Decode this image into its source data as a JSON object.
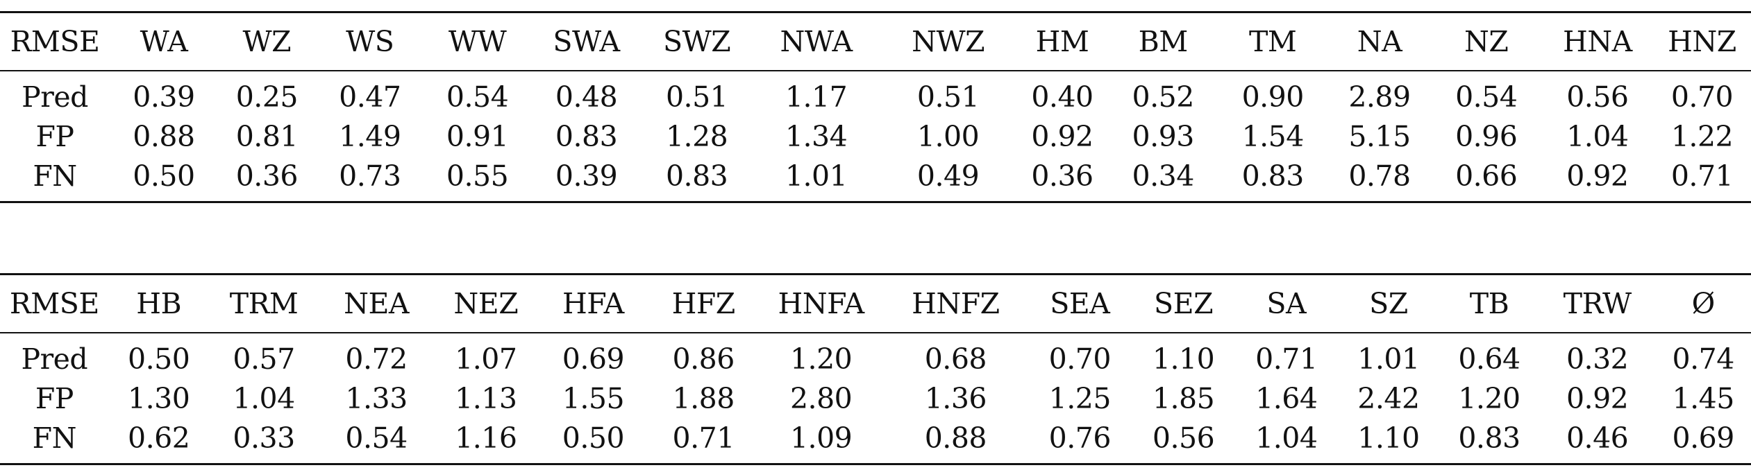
{
  "tables": [
    {
      "headers": [
        "RMSE",
        "WA",
        "WZ",
        "WS",
        "WW",
        "SWA",
        "SWZ",
        "NWA",
        "NWZ",
        "HM",
        "BM",
        "TM",
        "NA",
        "NZ",
        "HNA",
        "HNZ"
      ],
      "rows": [
        [
          "Pred",
          "0.39",
          "0.25",
          "0.47",
          "0.54",
          "0.48",
          "0.51",
          "1.17",
          "0.51",
          "0.40",
          "0.52",
          "0.90",
          "2.89",
          "0.54",
          "0.56",
          "0.70"
        ],
        [
          "FP",
          "0.88",
          "0.81",
          "1.49",
          "0.91",
          "0.83",
          "1.28",
          "1.34",
          "1.00",
          "0.92",
          "0.93",
          "1.54",
          "5.15",
          "0.96",
          "1.04",
          "1.22"
        ],
        [
          "FN",
          "0.50",
          "0.36",
          "0.73",
          "0.55",
          "0.39",
          "0.83",
          "1.01",
          "0.49",
          "0.36",
          "0.34",
          "0.83",
          "0.78",
          "0.66",
          "0.92",
          "0.71"
        ]
      ]
    },
    {
      "headers": [
        "RMSE",
        "HB",
        "TRM",
        "NEA",
        "NEZ",
        "HFA",
        "HFZ",
        "HNFA",
        "HNFZ",
        "SEA",
        "SEZ",
        "SA",
        "SZ",
        "TB",
        "TRW",
        "Ø"
      ],
      "rows": [
        [
          "Pred",
          "0.50",
          "0.57",
          "0.72",
          "1.07",
          "0.69",
          "0.86",
          "1.20",
          "0.68",
          "0.70",
          "1.10",
          "0.71",
          "1.01",
          "0.64",
          "0.32",
          "0.74"
        ],
        [
          "FP",
          "1.30",
          "1.04",
          "1.33",
          "1.13",
          "1.55",
          "1.88",
          "2.80",
          "1.36",
          "1.25",
          "1.85",
          "1.64",
          "2.42",
          "1.20",
          "0.92",
          "1.45"
        ],
        [
          "FN",
          "0.62",
          "0.33",
          "0.54",
          "1.16",
          "0.50",
          "0.71",
          "1.09",
          "0.88",
          "0.76",
          "0.56",
          "1.04",
          "1.10",
          "0.83",
          "0.46",
          "0.69"
        ]
      ]
    }
  ]
}
